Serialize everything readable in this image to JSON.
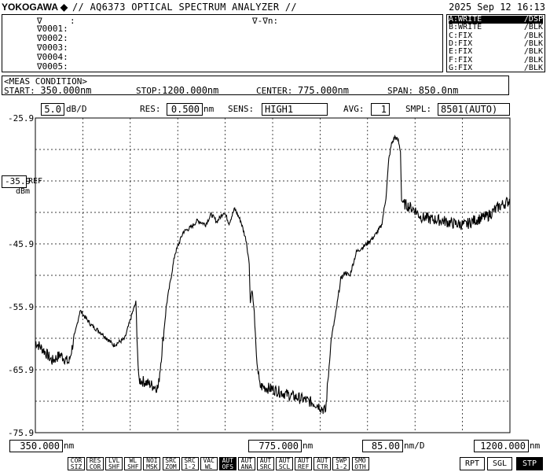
{
  "header": {
    "logo": "YOKOGAWA",
    "title": "// AQ6373 OPTICAL SPECTRUM ANALYZER //",
    "datetime": "2025 Sep 12 16:13"
  },
  "marker_panel": {
    "marker_symbol": "∇",
    "marker_colon": ":",
    "delta_label": "∇-∇n:",
    "rows": [
      "∇0001:",
      "∇0002:",
      "∇0003:",
      "∇0004:",
      "∇0005:"
    ]
  },
  "traces": [
    {
      "state": "A:WRITE",
      "mode": "/DSP",
      "active": true
    },
    {
      "state": "B:WRITE",
      "mode": "/BLK",
      "active": false
    },
    {
      "state": "C:FIX",
      "mode": "/BLK",
      "active": false
    },
    {
      "state": "D:FIX",
      "mode": "/BLK",
      "active": false
    },
    {
      "state": "E:FIX",
      "mode": "/BLK",
      "active": false
    },
    {
      "state": "F:FIX",
      "mode": "/BLK",
      "active": false
    },
    {
      "state": "G:FIX",
      "mode": "/BLK",
      "active": false
    }
  ],
  "meas": {
    "heading": "<MEAS CONDITION>",
    "start_label": "START:",
    "start_value": "350.000nm",
    "stop_label": "STOP:",
    "stop_value": "1200.000nm",
    "center_label": "CENTER:",
    "center_value": "775.000nm",
    "span_label": "SPAN:",
    "span_value": "850.0nm"
  },
  "settings": {
    "scale_value": "5.0",
    "scale_unit": "dB/D",
    "res_label": "RES:",
    "res_value": "0.500",
    "res_unit": "nm",
    "sens_label": "SENS:",
    "sens_value": "HIGH1",
    "avg_label": "AVG:",
    "avg_value": "1",
    "smpl_label": "SMPL:",
    "smpl_value": "8501(AUTO)"
  },
  "y_axis": {
    "ref_value": "-35.9",
    "ref_label": "REF",
    "unit": "dBm",
    "ticks": [
      "-25.9",
      "-45.9",
      "-55.9",
      "-65.9",
      "-75.9"
    ]
  },
  "x_axis": {
    "start": "350.000",
    "center": "775.000",
    "div": "85.00",
    "div_unit": "nm/D",
    "stop": "1200.000",
    "unit": "nm"
  },
  "chart_data": {
    "type": "line",
    "x_unit": "nm",
    "y_unit": "dBm",
    "xlim": [
      350,
      1200
    ],
    "ylim": [
      -75.9,
      -25.9
    ],
    "grid": true,
    "series": [
      {
        "points": [
          [
            350,
            -61.5
          ],
          [
            365,
            -62.8
          ],
          [
            380,
            -64.5
          ],
          [
            395,
            -63.5
          ],
          [
            410,
            -64.8
          ],
          [
            430,
            -56.5
          ],
          [
            450,
            -58.8
          ],
          [
            470,
            -60.2
          ],
          [
            490,
            -62.0
          ],
          [
            510,
            -61.0
          ],
          [
            525,
            -56.5
          ],
          [
            530,
            -55.2
          ],
          [
            535,
            -67.5
          ],
          [
            545,
            -67.8
          ],
          [
            570,
            -68.8
          ],
          [
            585,
            -55.5
          ],
          [
            600,
            -47.5
          ],
          [
            615,
            -44.0
          ],
          [
            630,
            -43.2
          ],
          [
            640,
            -42.2
          ],
          [
            655,
            -42.8
          ],
          [
            665,
            -41.2
          ],
          [
            675,
            -42.4
          ],
          [
            688,
            -40.8
          ],
          [
            697,
            -42.6
          ],
          [
            707,
            -40.3
          ],
          [
            718,
            -42.3
          ],
          [
            728,
            -45.5
          ],
          [
            733,
            -49.0
          ],
          [
            735,
            -55.3
          ],
          [
            738,
            -53.0
          ],
          [
            742,
            -56.8
          ],
          [
            746,
            -64.0
          ],
          [
            752,
            -68.5
          ],
          [
            775,
            -69.0
          ],
          [
            800,
            -69.8
          ],
          [
            830,
            -70.6
          ],
          [
            855,
            -71.4
          ],
          [
            870,
            -72.5
          ],
          [
            872,
            -70.0
          ],
          [
            875,
            -66.5
          ],
          [
            880,
            -61.0
          ],
          [
            888,
            -57.0
          ],
          [
            897,
            -51.5
          ],
          [
            905,
            -50.4
          ],
          [
            913,
            -51.0
          ],
          [
            925,
            -47.2
          ],
          [
            945,
            -45.8
          ],
          [
            958,
            -44.6
          ],
          [
            970,
            -43.0
          ],
          [
            978,
            -38.5
          ],
          [
            983,
            -32.5
          ],
          [
            988,
            -30.0
          ],
          [
            994,
            -28.9
          ],
          [
            1000,
            -29.5
          ],
          [
            1004,
            -31.2
          ],
          [
            1006,
            -39.0
          ],
          [
            1010,
            -39.5
          ],
          [
            1030,
            -40.5
          ],
          [
            1040,
            -41.6
          ],
          [
            1060,
            -42.0
          ],
          [
            1080,
            -42.2
          ],
          [
            1095,
            -42.6
          ],
          [
            1120,
            -42.9
          ],
          [
            1135,
            -42.2
          ],
          [
            1160,
            -41.5
          ],
          [
            1180,
            -40.0
          ],
          [
            1200,
            -39.0
          ]
        ]
      }
    ]
  },
  "softkeys": [
    {
      "l1": "COR",
      "l2": "SIZ",
      "on": false
    },
    {
      "l1": "RES",
      "l2": "COR",
      "on": false
    },
    {
      "l1": "LVL",
      "l2": "SHF",
      "on": false
    },
    {
      "l1": "WL",
      "l2": "SHF",
      "on": false
    },
    {
      "l1": "NOI",
      "l2": "MSK",
      "on": false
    },
    {
      "l1": "SRC",
      "l2": "ZOM",
      "on": false
    },
    {
      "l1": "SRC",
      "l2": "1-2",
      "on": false
    },
    {
      "l1": "VAC",
      "l2": "WL",
      "on": false
    },
    {
      "l1": "AUT",
      "l2": "OFS",
      "on": true
    },
    {
      "l1": "AUT",
      "l2": "ANA",
      "on": false
    },
    {
      "l1": "AUT",
      "l2": "SRC",
      "on": false
    },
    {
      "l1": "AUT",
      "l2": "SCL",
      "on": false
    },
    {
      "l1": "AUT",
      "l2": "REF",
      "on": false
    },
    {
      "l1": "AUT",
      "l2": "CTR",
      "on": false
    },
    {
      "l1": "SWP",
      "l2": "1-2",
      "on": false
    },
    {
      "l1": "SMO",
      "l2": "OTH",
      "on": false
    }
  ],
  "sweep_buttons": [
    {
      "label": "RPT",
      "on": false
    },
    {
      "label": "SGL",
      "on": false
    },
    {
      "label": "STP",
      "on": true
    }
  ]
}
